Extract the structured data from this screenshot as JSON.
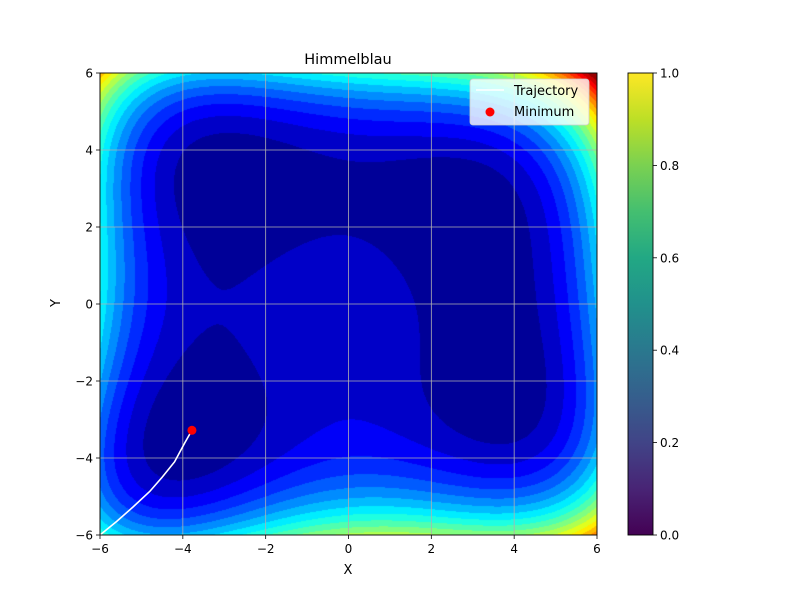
{
  "chart_data": {
    "type": "contourf",
    "title": "Himmelblau",
    "xlabel": "X",
    "ylabel": "Y",
    "xlim": [
      -6,
      6
    ],
    "ylim": [
      -6,
      6
    ],
    "xticks": [
      -6,
      -4,
      -2,
      0,
      2,
      4,
      6
    ],
    "yticks": [
      -6,
      -4,
      -2,
      0,
      2,
      4,
      6
    ],
    "grid": true,
    "colormap": "jet",
    "function": "himmelblau",
    "contour_levels": [
      0,
      100,
      200,
      300,
      400,
      500,
      600,
      700,
      800,
      900,
      1000,
      1100,
      1200,
      1300,
      1400,
      1500,
      1600,
      1700,
      1800,
      1900,
      2000,
      2100
    ],
    "legend": {
      "position": "top-right",
      "entries": [
        {
          "label": "Trajectory",
          "marker": "line",
          "color": "#ffffff"
        },
        {
          "label": "Minimum",
          "marker": "dot",
          "color": "#ff0000"
        }
      ]
    },
    "series": [
      {
        "name": "Trajectory",
        "kind": "line",
        "color": "#ffffff",
        "x": [
          -6.0,
          -5.6,
          -5.2,
          -4.8,
          -4.5,
          -4.2,
          -3.95,
          -3.78
        ],
        "y": [
          -6.0,
          -5.65,
          -5.27,
          -4.87,
          -4.5,
          -4.1,
          -3.6,
          -3.28
        ]
      },
      {
        "name": "Minimum",
        "kind": "scatter",
        "color": "#ff0000",
        "x": [
          -3.78
        ],
        "y": [
          -3.28
        ]
      }
    ],
    "colorbar": {
      "range": [
        0,
        1
      ],
      "ticks": [
        "0.0",
        "0.2",
        "0.4",
        "0.6",
        "0.8",
        "1.0"
      ],
      "colormap": "viridis"
    }
  }
}
